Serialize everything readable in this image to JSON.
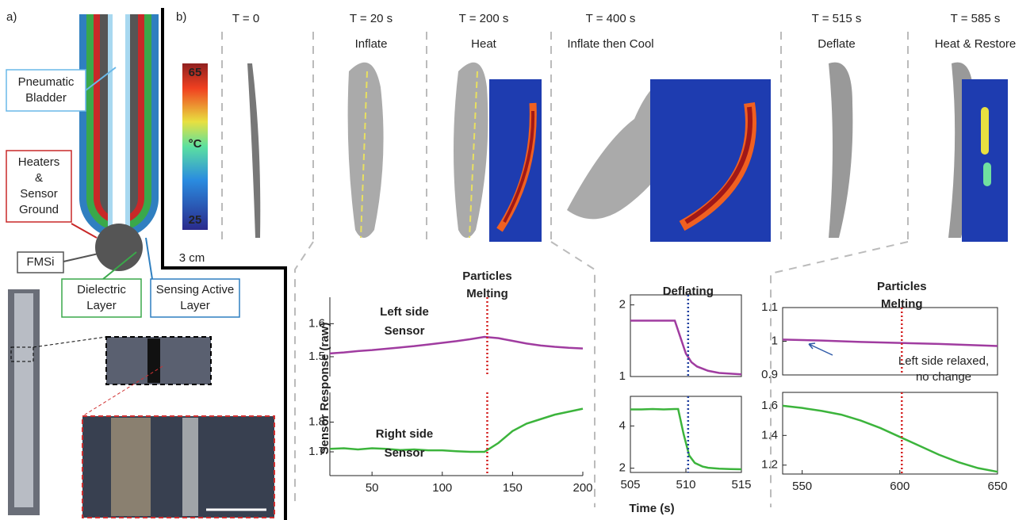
{
  "panel_a": {
    "label": "a)",
    "callouts": [
      {
        "lines": [
          "Pneumatic",
          "Bladder"
        ]
      },
      {
        "lines": [
          "Heaters",
          "&",
          "Sensor",
          "Ground"
        ]
      },
      {
        "lines": [
          "FMSi"
        ]
      },
      {
        "lines": [
          "Dielectric",
          "Layer"
        ]
      },
      {
        "lines": [
          "Sensing Active",
          "Layer"
        ]
      }
    ]
  },
  "panel_b": {
    "label": "b)",
    "snapshots": [
      {
        "time": "T = 0"
      },
      {
        "time": "T = 20 s",
        "action": "Inflate"
      },
      {
        "time": "T = 200 s",
        "action": "Heat"
      },
      {
        "time": "T = 400 s",
        "action": "Inflate then Cool"
      },
      {
        "time": "T = 515 s",
        "action": "Deflate"
      },
      {
        "time": "T = 585 s",
        "action": "Heat & Restore"
      }
    ],
    "colorbar": {
      "label": "°C",
      "lim": [
        25,
        65
      ],
      "ticks": [
        25,
        65
      ]
    },
    "scale_bar": "3 cm"
  },
  "y_label": "Sensor Response (raw)",
  "x_label": "Time (s)",
  "chart_data": [
    {
      "type": "line",
      "xlim": [
        20,
        200
      ],
      "ylim": [
        1.44,
        1.68
      ],
      "yticks": [
        1.5,
        1.6
      ],
      "annotation": [
        "Left side",
        "Sensor"
      ],
      "vline": {
        "x": 132,
        "color": "#d42020",
        "label": [
          "Particles",
          "Melting"
        ]
      },
      "series": [
        {
          "color": "#a03ca0",
          "x": [
            20,
            30,
            40,
            50,
            60,
            70,
            80,
            90,
            100,
            110,
            120,
            130,
            140,
            150,
            160,
            170,
            180,
            190,
            200
          ],
          "values": [
            1.51,
            1.513,
            1.517,
            1.52,
            1.524,
            1.528,
            1.532,
            1.537,
            1.542,
            1.547,
            1.553,
            1.56,
            1.556,
            1.548,
            1.54,
            1.534,
            1.53,
            1.527,
            1.525
          ]
        }
      ]
    },
    {
      "type": "line",
      "xlim": [
        20,
        200
      ],
      "xticks": [
        50,
        100,
        150,
        200
      ],
      "ylim": [
        1.62,
        1.9
      ],
      "yticks": [
        1.7,
        1.8
      ],
      "annotation": [
        "Right side",
        "Sensor"
      ],
      "vline": {
        "x": 132,
        "color": "#d42020"
      },
      "series": [
        {
          "color": "#3cb43c",
          "x": [
            20,
            30,
            40,
            50,
            60,
            70,
            80,
            90,
            100,
            110,
            120,
            130,
            140,
            150,
            160,
            170,
            180,
            190,
            200
          ],
          "values": [
            1.71,
            1.712,
            1.708,
            1.712,
            1.71,
            1.706,
            1.708,
            1.705,
            1.705,
            1.702,
            1.7,
            1.7,
            1.73,
            1.77,
            1.795,
            1.81,
            1.825,
            1.835,
            1.845
          ]
        }
      ]
    },
    {
      "type": "line",
      "xlim": [
        505,
        515
      ],
      "ylim": [
        1,
        2.14
      ],
      "yticks": [
        1,
        2
      ],
      "vline": {
        "x": 510.2,
        "color": "#2040a0",
        "label": [
          "Deflating"
        ]
      },
      "series": [
        {
          "color": "#a03ca0",
          "x": [
            505,
            506,
            507,
            508,
            509,
            509.5,
            510,
            510.5,
            511,
            512,
            513,
            514,
            515
          ],
          "values": [
            1.78,
            1.78,
            1.78,
            1.78,
            1.78,
            1.55,
            1.32,
            1.2,
            1.14,
            1.08,
            1.05,
            1.04,
            1.03
          ]
        }
      ]
    },
    {
      "type": "line",
      "xlim": [
        505,
        515
      ],
      "xticks": [
        505,
        510,
        515
      ],
      "ylim": [
        1.8,
        5.4
      ],
      "yticks": [
        2,
        4
      ],
      "vline": {
        "x": 510.2,
        "color": "#2040a0"
      },
      "series": [
        {
          "color": "#3cb43c",
          "x": [
            505,
            506,
            507,
            508,
            509,
            509.3,
            509.8,
            510.3,
            510.8,
            511.5,
            512,
            513,
            514,
            515
          ],
          "values": [
            4.78,
            4.78,
            4.8,
            4.78,
            4.8,
            4.8,
            3.6,
            2.6,
            2.25,
            2.08,
            2.02,
            1.98,
            1.96,
            1.95
          ]
        }
      ]
    },
    {
      "type": "line",
      "xlim": [
        540,
        650
      ],
      "ylim": [
        0.9,
        1.1
      ],
      "yticks": [
        0.9,
        1,
        1.1
      ],
      "annotation": [
        "Left side relaxed,",
        "no change"
      ],
      "vline": {
        "x": 601,
        "color": "#d42020",
        "label": [
          "Particles",
          "Melting"
        ]
      },
      "series": [
        {
          "color": "#a03ca0",
          "x": [
            540,
            560,
            580,
            600,
            620,
            640,
            650
          ],
          "values": [
            1.005,
            1.002,
            0.998,
            0.995,
            0.992,
            0.988,
            0.986
          ]
        }
      ]
    },
    {
      "type": "line",
      "xlim": [
        540,
        650
      ],
      "xticks": [
        550,
        600,
        650
      ],
      "ylim": [
        1.14,
        1.69
      ],
      "yticks": [
        1.2,
        1.4,
        1.6
      ],
      "vline": {
        "x": 601,
        "color": "#d42020"
      },
      "series": [
        {
          "color": "#3cb43c",
          "x": [
            540,
            550,
            560,
            570,
            580,
            590,
            600,
            610,
            620,
            630,
            640,
            650
          ],
          "values": [
            1.6,
            1.585,
            1.565,
            1.54,
            1.5,
            1.45,
            1.39,
            1.33,
            1.27,
            1.22,
            1.18,
            1.155
          ]
        }
      ]
    }
  ]
}
